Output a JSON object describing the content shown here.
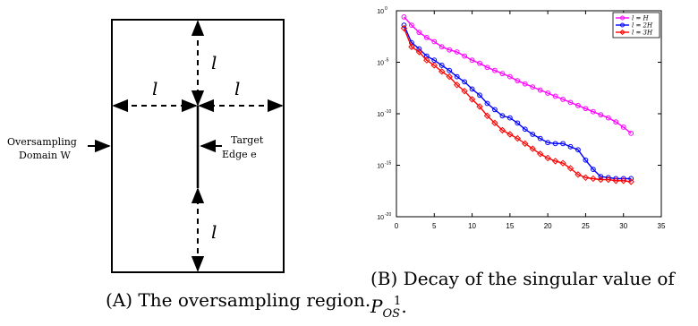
{
  "figure_a": {
    "label_l": "l",
    "left_label_line1": "Oversampling",
    "left_label_line2": "Domain W",
    "right_label_line1": "Target",
    "right_label_line2": "Edge e",
    "caption_tag": "(A)",
    "caption_text": "The oversampling region."
  },
  "figure_b": {
    "caption_tag": "(B)",
    "caption_text": "Decay of the singular value of",
    "caption_math_base": "P",
    "caption_math_sup": "1",
    "caption_math_sub": "OS",
    "caption_tail": ".",
    "legend_colors": {
      "l_eq_H": "#ff00ff",
      "l_eq_2H": "#0000ff",
      "l_eq_3H": "#ff0000"
    }
  },
  "chart_data": {
    "type": "line",
    "title": "",
    "xlabel": "",
    "ylabel": "",
    "xlim": [
      0,
      35
    ],
    "ylim_exponent": [
      -20,
      0
    ],
    "y_scale": "log",
    "grid": false,
    "legend_position": "top-right",
    "x_ticks": [
      "0",
      "5",
      "10",
      "15",
      "20",
      "25",
      "30",
      "35"
    ],
    "y_ticks": [
      {
        "base": "10",
        "exp": "0"
      },
      {
        "base": "10",
        "exp": "-5"
      },
      {
        "base": "10",
        "exp": "-10"
      },
      {
        "base": "10",
        "exp": "-15"
      },
      {
        "base": "10",
        "exp": "-20"
      }
    ],
    "x": [
      1,
      2,
      3,
      4,
      5,
      6,
      7,
      8,
      9,
      10,
      11,
      12,
      13,
      14,
      15,
      16,
      17,
      18,
      19,
      20,
      21,
      22,
      23,
      24,
      25,
      26,
      27,
      28,
      29,
      30,
      31
    ],
    "series": [
      {
        "name": "l = H",
        "color": "#ff00ff",
        "marker": "circle",
        "log10_values": [
          -0.6,
          -1.4,
          -2.1,
          -2.6,
          -3.0,
          -3.5,
          -3.8,
          -4.0,
          -4.4,
          -4.8,
          -5.1,
          -5.5,
          -5.8,
          -6.1,
          -6.4,
          -6.8,
          -7.1,
          -7.4,
          -7.7,
          -8.0,
          -8.3,
          -8.6,
          -8.9,
          -9.2,
          -9.5,
          -9.8,
          -10.1,
          -10.4,
          -10.8,
          -11.3,
          -11.9
        ]
      },
      {
        "name": "l = 2H",
        "color": "#0000ff",
        "marker": "circle",
        "log10_values": [
          -1.4,
          -3.1,
          -3.7,
          -4.4,
          -4.8,
          -5.3,
          -5.8,
          -6.4,
          -6.9,
          -7.6,
          -8.2,
          -9.0,
          -9.6,
          -10.2,
          -10.4,
          -10.9,
          -11.5,
          -12.0,
          -12.4,
          -12.8,
          -12.9,
          -12.9,
          -13.2,
          -13.5,
          -14.5,
          -15.4,
          -16.1,
          -16.2,
          -16.3,
          -16.3,
          -16.3
        ]
      },
      {
        "name": "l = 3H",
        "color": "#ff0000",
        "marker": "diamond",
        "log10_values": [
          -1.7,
          -3.5,
          -4.0,
          -4.8,
          -5.3,
          -5.9,
          -6.4,
          -7.2,
          -7.8,
          -8.6,
          -9.3,
          -10.2,
          -10.9,
          -11.6,
          -12.0,
          -12.4,
          -12.9,
          -13.4,
          -13.9,
          -14.3,
          -14.6,
          -14.8,
          -15.3,
          -15.9,
          -16.2,
          -16.3,
          -16.4,
          -16.4,
          -16.5,
          -16.5,
          -16.6
        ]
      }
    ]
  }
}
